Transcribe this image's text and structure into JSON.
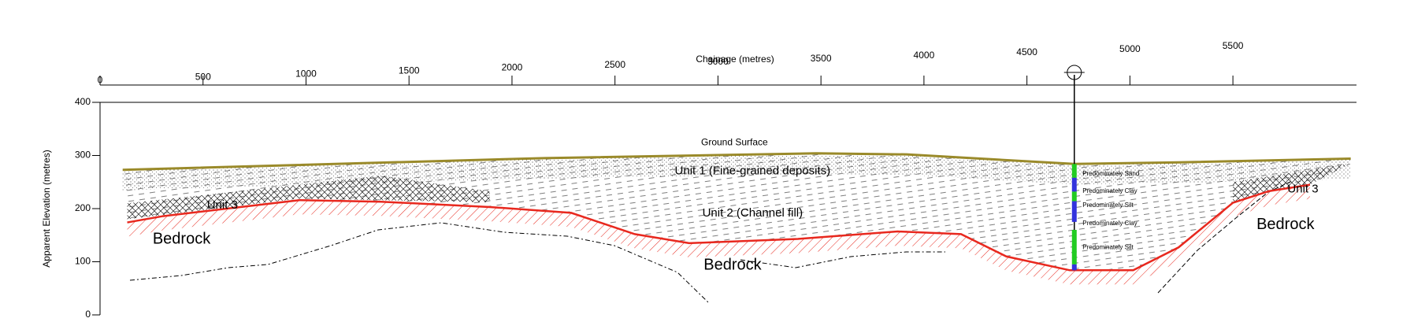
{
  "chart_data": {
    "type": "line",
    "xlabel": "Chainage (metres)",
    "ylabel": "Apparent Elevation (metres)",
    "xlim": [
      0,
      6100
    ],
    "xticks": [
      0,
      500,
      1000,
      1500,
      2000,
      2500,
      3000,
      3500,
      4000,
      4500,
      5000,
      5500
    ],
    "ylim": [
      0,
      400
    ],
    "yticks": [
      0,
      100,
      200,
      300,
      400
    ],
    "series": [
      {
        "name": "Ground Surface",
        "color": "#9a8a2a",
        "x": [
          110,
          2156,
          3476,
          3916,
          4730,
          5236,
          6072
        ],
        "values": [
          273,
          295,
          304,
          302,
          284,
          287,
          294
        ]
      },
      {
        "name": "Bedrock",
        "color": "#e8281e",
        "x": [
          132,
          308,
          968,
          1364,
          1892,
          2288,
          2596,
          2860,
          3388,
          3872,
          4180,
          4400,
          4708,
          5016,
          5236,
          5500,
          5676,
          5874
        ],
        "values": [
          174,
          186,
          216,
          213,
          203,
          192,
          152,
          135,
          143,
          157,
          152,
          110,
          84,
          84,
          127,
          211,
          233,
          245
        ]
      }
    ],
    "annotations": [
      "Unit 1 (Fine-grained deposits)",
      "Unit 2 (Channel fill)",
      "Unit 3",
      "Unit 3",
      "Bedrock",
      "Bedrock",
      "Predominately Sand",
      "Predominately Clay",
      "Predominately Silt",
      "Predominately Clay",
      "Predominately Silt"
    ]
  }
}
